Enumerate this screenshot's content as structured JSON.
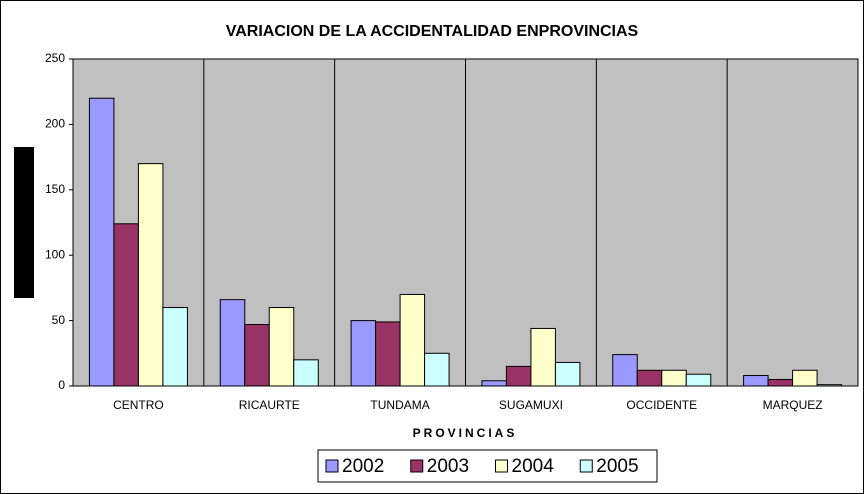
{
  "chart_data": {
    "type": "bar",
    "title": "VARIACION DE LA ACCIDENTALIDAD ENPROVINCIAS",
    "x_label": "PROVINCIAS",
    "categories": [
      "CENTRO",
      "RICAURTE",
      "TUNDAMA",
      "SUGAMUXI",
      "OCCIDENTE",
      "MARQUEZ"
    ],
    "series": [
      {
        "name": "2002",
        "color": "#9999ff",
        "values": [
          220,
          66,
          50,
          4,
          24,
          8
        ]
      },
      {
        "name": "2003",
        "color": "#993366",
        "values": [
          124,
          47,
          49,
          15,
          12,
          5
        ]
      },
      {
        "name": "2004",
        "color": "#ffffcc",
        "values": [
          170,
          60,
          70,
          44,
          12,
          12
        ]
      },
      {
        "name": "2005",
        "color": "#ccffff",
        "values": [
          60,
          20,
          25,
          18,
          9,
          1
        ]
      }
    ],
    "ylim": [
      0,
      250
    ],
    "yticks": [
      0,
      50,
      100,
      150,
      200,
      250
    ],
    "plot_background": "#c0c0c0",
    "legend": "bottom"
  }
}
